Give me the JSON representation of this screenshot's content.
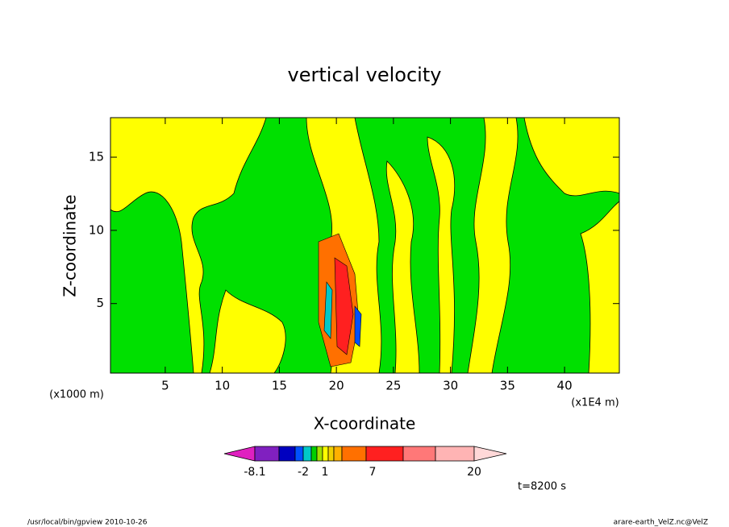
{
  "chart_data": {
    "type": "contour",
    "title": "vertical velocity",
    "x_label": "X-coordinate",
    "y_label": "Z-coordinate",
    "x_unit": "(x1E4 m)",
    "y_unit": "(x1000 m)",
    "xlim": [
      0.2,
      44.8
    ],
    "xticks": [
      5,
      10,
      15,
      20,
      25,
      30,
      35,
      40
    ],
    "ylim": [
      0.25,
      17.7
    ],
    "yticks": [
      5,
      10,
      15
    ],
    "colorbar": {
      "colors": [
        "#e020c0",
        "#8020c0",
        "#0000c0",
        "#0050ff",
        "#00c8c8",
        "#00d000",
        "#a0e000",
        "#ffff00",
        "#f0d000",
        "#ffb000",
        "#ff7000",
        "#ff2020",
        "#ff7878",
        "#ffb4b4",
        "#ffd8d8"
      ],
      "ticks": [
        -8.1,
        -2,
        1,
        7,
        20
      ]
    },
    "time_label": "t=8200 s",
    "footer_left": "/usr/local/bin/gpview   2010-10-26",
    "footer_right": "arare-earth_VelZ.nc@VelZ"
  }
}
